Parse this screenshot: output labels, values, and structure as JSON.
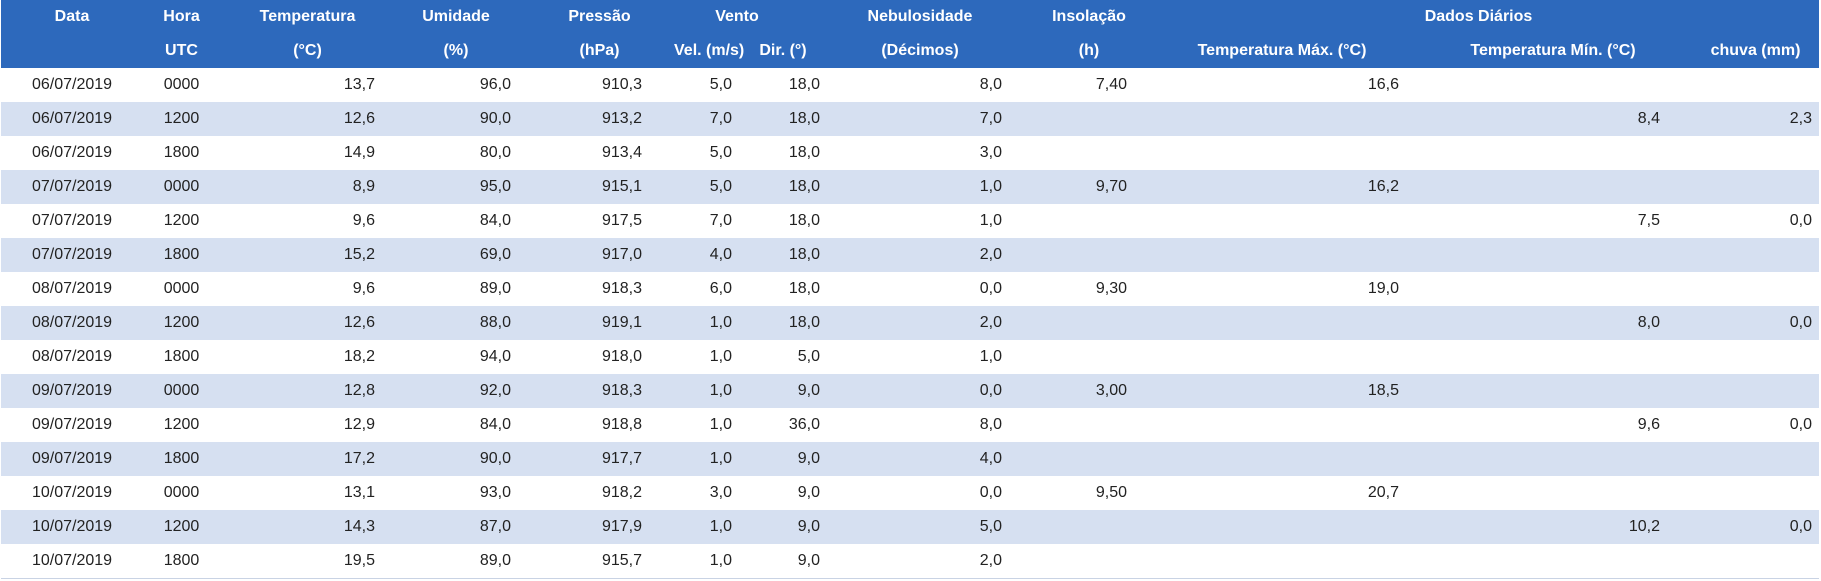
{
  "header": {
    "row1": {
      "data": "Data",
      "hora": "Hora",
      "temperatura": "Temperatura",
      "umidade": "Umidade",
      "pressao": "Pressão",
      "vento": "Vento",
      "nebulosidade": "Nebulosidade",
      "insolacao": "Insolação",
      "dados_diarios": "Dados Diários"
    },
    "row2": {
      "hora_unit": "UTC",
      "temp_unit": "(°C)",
      "umid_unit": "(%)",
      "press_unit": "(hPa)",
      "vel": "Vel. (m/s)",
      "dir": "Dir. (°)",
      "neb_unit": "(Décimos)",
      "ins_unit": "(h)",
      "temp_max": "Temperatura Máx. (°C)",
      "temp_min": "Temperatura Mín. (°C)",
      "chuva": "chuva (mm)"
    }
  },
  "rows": [
    {
      "data": "06/07/2019",
      "hora": "0000",
      "temp": "13,7",
      "umid": "96,0",
      "press": "910,3",
      "vel": "5,0",
      "dir": "18,0",
      "neb": "8,0",
      "ins": "7,40",
      "tmax": "16,6",
      "tmin": "",
      "chuva": ""
    },
    {
      "data": "06/07/2019",
      "hora": "1200",
      "temp": "12,6",
      "umid": "90,0",
      "press": "913,2",
      "vel": "7,0",
      "dir": "18,0",
      "neb": "7,0",
      "ins": "",
      "tmax": "",
      "tmin": "8,4",
      "chuva": "2,3"
    },
    {
      "data": "06/07/2019",
      "hora": "1800",
      "temp": "14,9",
      "umid": "80,0",
      "press": "913,4",
      "vel": "5,0",
      "dir": "18,0",
      "neb": "3,0",
      "ins": "",
      "tmax": "",
      "tmin": "",
      "chuva": ""
    },
    {
      "data": "07/07/2019",
      "hora": "0000",
      "temp": "8,9",
      "umid": "95,0",
      "press": "915,1",
      "vel": "5,0",
      "dir": "18,0",
      "neb": "1,0",
      "ins": "9,70",
      "tmax": "16,2",
      "tmin": "",
      "chuva": ""
    },
    {
      "data": "07/07/2019",
      "hora": "1200",
      "temp": "9,6",
      "umid": "84,0",
      "press": "917,5",
      "vel": "7,0",
      "dir": "18,0",
      "neb": "1,0",
      "ins": "",
      "tmax": "",
      "tmin": "7,5",
      "chuva": "0,0"
    },
    {
      "data": "07/07/2019",
      "hora": "1800",
      "temp": "15,2",
      "umid": "69,0",
      "press": "917,0",
      "vel": "4,0",
      "dir": "18,0",
      "neb": "2,0",
      "ins": "",
      "tmax": "",
      "tmin": "",
      "chuva": ""
    },
    {
      "data": "08/07/2019",
      "hora": "0000",
      "temp": "9,6",
      "umid": "89,0",
      "press": "918,3",
      "vel": "6,0",
      "dir": "18,0",
      "neb": "0,0",
      "ins": "9,30",
      "tmax": "19,0",
      "tmin": "",
      "chuva": ""
    },
    {
      "data": "08/07/2019",
      "hora": "1200",
      "temp": "12,6",
      "umid": "88,0",
      "press": "919,1",
      "vel": "1,0",
      "dir": "18,0",
      "neb": "2,0",
      "ins": "",
      "tmax": "",
      "tmin": "8,0",
      "chuva": "0,0"
    },
    {
      "data": "08/07/2019",
      "hora": "1800",
      "temp": "18,2",
      "umid": "94,0",
      "press": "918,0",
      "vel": "1,0",
      "dir": "5,0",
      "neb": "1,0",
      "ins": "",
      "tmax": "",
      "tmin": "",
      "chuva": ""
    },
    {
      "data": "09/07/2019",
      "hora": "0000",
      "temp": "12,8",
      "umid": "92,0",
      "press": "918,3",
      "vel": "1,0",
      "dir": "9,0",
      "neb": "0,0",
      "ins": "3,00",
      "tmax": "18,5",
      "tmin": "",
      "chuva": ""
    },
    {
      "data": "09/07/2019",
      "hora": "1200",
      "temp": "12,9",
      "umid": "84,0",
      "press": "918,8",
      "vel": "1,0",
      "dir": "36,0",
      "neb": "8,0",
      "ins": "",
      "tmax": "",
      "tmin": "9,6",
      "chuva": "0,0"
    },
    {
      "data": "09/07/2019",
      "hora": "1800",
      "temp": "17,2",
      "umid": "90,0",
      "press": "917,7",
      "vel": "1,0",
      "dir": "9,0",
      "neb": "4,0",
      "ins": "",
      "tmax": "",
      "tmin": "",
      "chuva": ""
    },
    {
      "data": "10/07/2019",
      "hora": "0000",
      "temp": "13,1",
      "umid": "93,0",
      "press": "918,2",
      "vel": "3,0",
      "dir": "9,0",
      "neb": "0,0",
      "ins": "9,50",
      "tmax": "20,7",
      "tmin": "",
      "chuva": ""
    },
    {
      "data": "10/07/2019",
      "hora": "1200",
      "temp": "14,3",
      "umid": "87,0",
      "press": "917,9",
      "vel": "1,0",
      "dir": "9,0",
      "neb": "5,0",
      "ins": "",
      "tmax": "",
      "tmin": "10,2",
      "chuva": "0,0"
    },
    {
      "data": "10/07/2019",
      "hora": "1800",
      "temp": "19,5",
      "umid": "89,0",
      "press": "915,7",
      "vel": "1,0",
      "dir": "9,0",
      "neb": "2,0",
      "ins": "",
      "tmax": "",
      "tmin": "",
      "chuva": ""
    }
  ],
  "colors": {
    "header_bg": "#2d69bc",
    "header_text": "#ffffff",
    "row_alt": "#d6e0f1",
    "row_plain": "#ffffff"
  }
}
